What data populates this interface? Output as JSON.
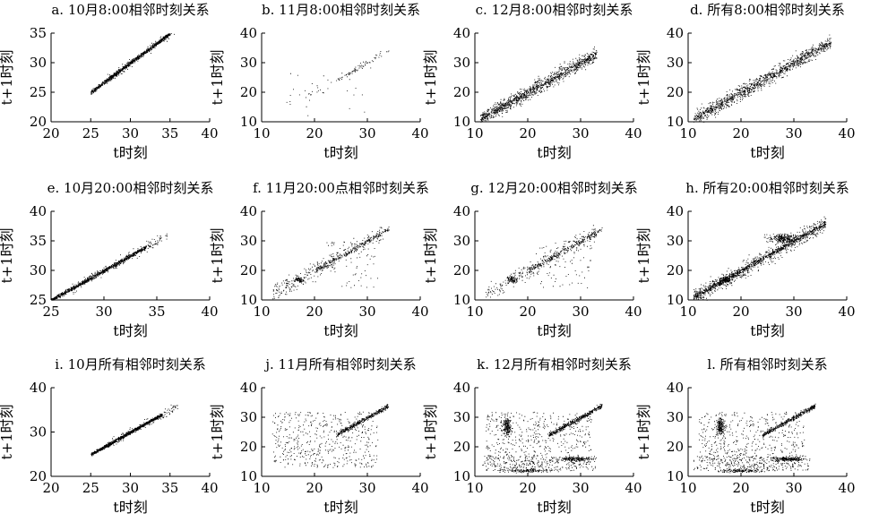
{
  "chart_data": [
    {
      "id": "a",
      "type": "scatter",
      "title": "a. 10月8:00相邻时刻关系",
      "xlabel": "t时刻",
      "ylabel": "t+1时刻",
      "xlim": [
        20,
        40
      ],
      "ylim": [
        20,
        35
      ],
      "xticks": [
        "20",
        "25",
        "30",
        "35",
        "40"
      ],
      "yticks": [
        "20",
        "25",
        "30",
        "35"
      ],
      "x_range": [
        25,
        37
      ],
      "pattern": "tight",
      "series": [
        {
          "x": [
            25,
            27,
            29,
            31,
            33,
            35
          ],
          "y": [
            25,
            27,
            29,
            31,
            33,
            34.5
          ]
        }
      ]
    },
    {
      "id": "b",
      "type": "scatter",
      "title": "b. 11月8:00相邻时刻关系",
      "xlabel": "t时刻",
      "ylabel": "t+1时刻",
      "xlim": [
        10,
        40
      ],
      "ylim": [
        10,
        40
      ],
      "xticks": [
        "10",
        "20",
        "30",
        "40"
      ],
      "yticks": [
        "10",
        "20",
        "30",
        "40"
      ],
      "x_range": [
        13,
        34
      ],
      "pattern": "sparse",
      "series": [
        {
          "x": [
            13,
            20,
            25,
            28,
            30,
            33
          ],
          "y": [
            20,
            22,
            25,
            28,
            30,
            33
          ]
        }
      ]
    },
    {
      "id": "c",
      "type": "scatter",
      "title": "c. 12月8:00相邻时刻关系",
      "xlabel": "t时刻",
      "ylabel": "t+1时刻",
      "xlim": [
        10,
        40
      ],
      "ylim": [
        10,
        40
      ],
      "xticks": [
        "10",
        "20",
        "30",
        "40"
      ],
      "yticks": [
        "10",
        "20",
        "30",
        "40"
      ],
      "x_range": [
        11,
        33
      ],
      "pattern": "cloud",
      "series": [
        {
          "x": [
            11,
            15,
            20,
            25,
            30,
            33
          ],
          "y": [
            11,
            15,
            20,
            25,
            30,
            33
          ]
        }
      ]
    },
    {
      "id": "d",
      "type": "scatter",
      "title": "d. 所有8:00相邻时刻关系",
      "xlabel": "t时刻",
      "ylabel": "t+1时刻",
      "xlim": [
        10,
        40
      ],
      "ylim": [
        10,
        40
      ],
      "xticks": [
        "10",
        "20",
        "30",
        "40"
      ],
      "yticks": [
        "10",
        "20",
        "30",
        "40"
      ],
      "x_range": [
        11,
        37
      ],
      "pattern": "cloud",
      "series": [
        {
          "x": [
            11,
            15,
            20,
            25,
            30,
            35
          ],
          "y": [
            11,
            15,
            20,
            25,
            30,
            35
          ]
        }
      ]
    },
    {
      "id": "e",
      "type": "scatter",
      "title": "e. 10月20:00相邻时刻关系",
      "xlabel": "t时刻",
      "ylabel": "t+1时刻",
      "xlim": [
        25,
        40
      ],
      "ylim": [
        25,
        40
      ],
      "xticks": [
        "25",
        "30",
        "35",
        "40"
      ],
      "yticks": [
        "25",
        "30",
        "35",
        "40"
      ],
      "x_range": [
        25,
        36
      ],
      "pattern": "tight",
      "series": [
        {
          "x": [
            25,
            28,
            30,
            32,
            34,
            36
          ],
          "y": [
            25,
            28,
            30,
            32,
            34,
            35.5
          ]
        }
      ]
    },
    {
      "id": "f",
      "type": "scatter",
      "title": "f. 11月20:00点相邻时刻关系",
      "xlabel": "t时刻",
      "ylabel": "t+1时刻",
      "xlim": [
        10,
        40
      ],
      "ylim": [
        10,
        40
      ],
      "xticks": [
        "10",
        "20",
        "30",
        "40"
      ],
      "yticks": [
        "10",
        "20",
        "30",
        "40"
      ],
      "x_range": [
        13,
        34
      ],
      "pattern": "bands",
      "series": [
        {
          "x": [
            13,
            18,
            22,
            26,
            30,
            33
          ],
          "y": [
            13,
            18,
            22,
            26,
            30,
            33
          ]
        }
      ]
    },
    {
      "id": "g",
      "type": "scatter",
      "title": "g. 12月20:00相邻时刻关系",
      "xlabel": "t时刻",
      "ylabel": "t+1时刻",
      "xlim": [
        10,
        40
      ],
      "ylim": [
        10,
        40
      ],
      "xticks": [
        "10",
        "20",
        "30",
        "40"
      ],
      "yticks": [
        "10",
        "20",
        "30",
        "40"
      ],
      "x_range": [
        11,
        33
      ],
      "pattern": "bands",
      "series": [
        {
          "x": [
            11,
            14,
            17,
            22,
            27,
            32
          ],
          "y": [
            11,
            13,
            17,
            22,
            27,
            32
          ]
        }
      ]
    },
    {
      "id": "h",
      "type": "scatter",
      "title": "h. 所有20:00相邻时刻关系",
      "xlabel": "t时刻",
      "ylabel": "t+1时刻",
      "xlim": [
        10,
        40
      ],
      "ylim": [
        10,
        40
      ],
      "xticks": [
        "10",
        "20",
        "30",
        "40"
      ],
      "yticks": [
        "10",
        "20",
        "30",
        "40"
      ],
      "x_range": [
        11,
        36
      ],
      "pattern": "dense",
      "series": [
        {
          "x": [
            11,
            15,
            20,
            25,
            30,
            35
          ],
          "y": [
            11,
            15,
            20,
            25,
            30,
            35
          ]
        }
      ]
    },
    {
      "id": "i",
      "type": "scatter",
      "title": "i. 10月所有相邻时刻关系",
      "xlabel": "t时刻",
      "ylabel": "t+1时刻",
      "xlim": [
        20,
        40
      ],
      "ylim": [
        20,
        40
      ],
      "xticks": [
        "20",
        "25",
        "30",
        "35",
        "40"
      ],
      "yticks": [
        "20",
        "30",
        "40"
      ],
      "x_range": [
        25,
        36
      ],
      "pattern": "tight",
      "series": [
        {
          "x": [
            25,
            27,
            29,
            31,
            33,
            35
          ],
          "y": [
            25,
            27,
            29,
            31,
            33,
            35
          ]
        }
      ]
    },
    {
      "id": "j",
      "type": "scatter",
      "title": "j. 11月所有相邻时刻关系",
      "xlabel": "t时刻",
      "ylabel": "t+1时刻",
      "xlim": [
        10,
        40
      ],
      "ylim": [
        10,
        40
      ],
      "xticks": [
        "10",
        "20",
        "30",
        "40"
      ],
      "yticks": [
        "10",
        "20",
        "30",
        "40"
      ],
      "x_range": [
        12,
        34
      ],
      "pattern": "box",
      "series": [
        {
          "x": [
            12,
            18,
            24,
            28,
            31,
            34
          ],
          "y": [
            14,
            20,
            24,
            28,
            31,
            34
          ]
        }
      ]
    },
    {
      "id": "k",
      "type": "scatter",
      "title": "k. 12月所有相邻时刻关系",
      "xlabel": "t时刻",
      "ylabel": "t+1时刻",
      "xlim": [
        10,
        40
      ],
      "ylim": [
        10,
        40
      ],
      "xticks": [
        "10",
        "20",
        "30",
        "40"
      ],
      "yticks": [
        "10",
        "20",
        "30",
        "40"
      ],
      "x_range": [
        11,
        33
      ],
      "pattern": "box",
      "series": [
        {
          "x": [
            11,
            16,
            17,
            25,
            30,
            32
          ],
          "y": [
            12,
            28,
            25,
            17,
            16,
            32
          ]
        }
      ]
    },
    {
      "id": "l",
      "type": "scatter",
      "title": "l. 所有相邻时刻关系",
      "xlabel": "t时刻",
      "ylabel": "t+1时刻",
      "xlim": [
        10,
        40
      ],
      "ylim": [
        10,
        40
      ],
      "xticks": [
        "10",
        "20",
        "30",
        "40"
      ],
      "yticks": [
        "10",
        "20",
        "30",
        "40"
      ],
      "x_range": [
        11,
        37
      ],
      "pattern": "box",
      "series": [
        {
          "x": [
            11,
            16,
            20,
            25,
            30,
            35
          ],
          "y": [
            12,
            28,
            20,
            25,
            30,
            35
          ]
        }
      ]
    }
  ]
}
